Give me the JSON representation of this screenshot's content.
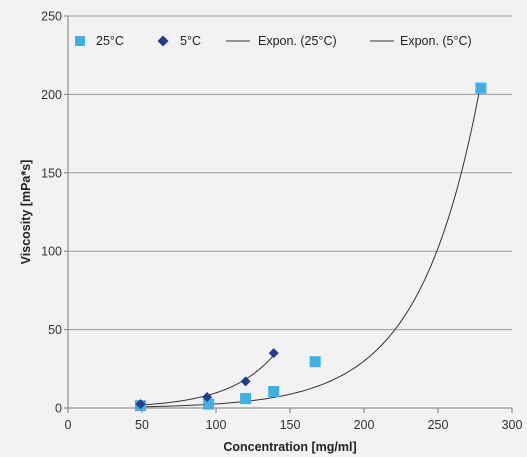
{
  "chart_data": {
    "type": "scatter",
    "title": "",
    "xlabel": "Concentration [mg/ml]",
    "ylabel": "Viscosity [mPa*s]",
    "xlim": [
      0,
      300
    ],
    "ylim": [
      0,
      250
    ],
    "xticks": [
      0,
      50,
      100,
      150,
      200,
      250,
      300
    ],
    "yticks": [
      0,
      50,
      100,
      150,
      200,
      250
    ],
    "grid": "horizontal",
    "legend_position": "top",
    "series": [
      {
        "name": "25°C",
        "marker": "square",
        "color": "#3eb0e4",
        "points": [
          [
            49,
            1.5
          ],
          [
            95,
            2.5
          ],
          [
            120,
            6
          ],
          [
            139,
            10.5
          ],
          [
            167,
            29.5
          ],
          [
            279,
            204
          ]
        ]
      },
      {
        "name": "5°C",
        "marker": "diamond",
        "color": "#1f3f8c",
        "points": [
          [
            49,
            2.5
          ],
          [
            94,
            7
          ],
          [
            120,
            17
          ],
          [
            139,
            35
          ]
        ]
      }
    ],
    "trendlines": [
      {
        "name": "Expon. (25°C)",
        "type": "exponential",
        "a": 0.223,
        "b": 0.0245,
        "x_range": [
          49,
          279
        ],
        "color": "#333333"
      },
      {
        "name": "Expon. (5°C)",
        "type": "exponential",
        "a": 0.394,
        "b": 0.032,
        "x_range": [
          49,
          139
        ],
        "color": "#333333"
      }
    ]
  }
}
